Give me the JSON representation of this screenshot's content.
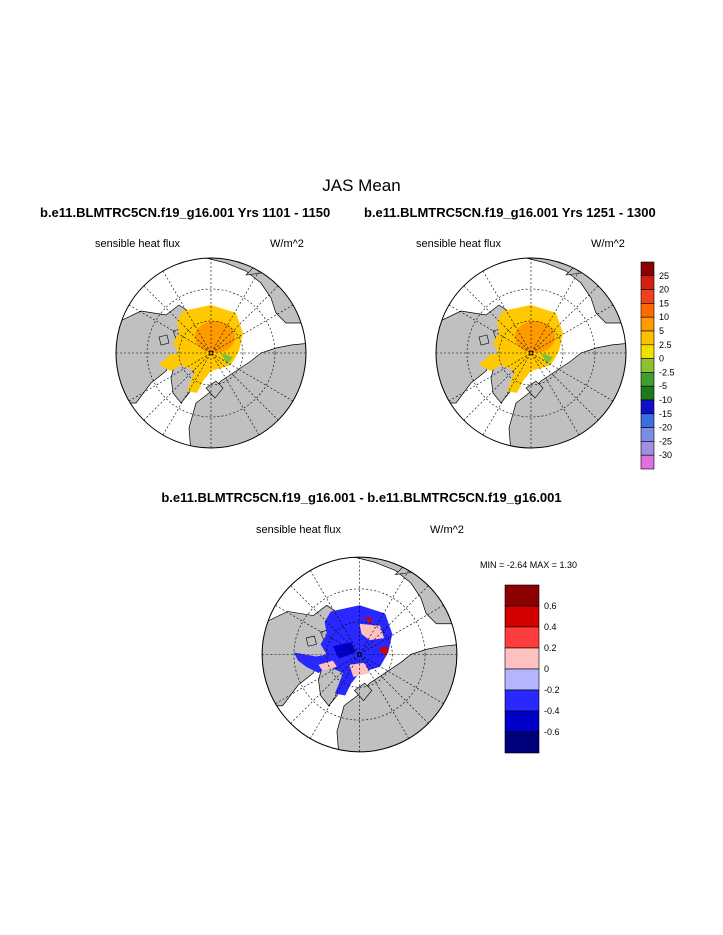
{
  "title": "JAS Mean",
  "panels": [
    {
      "case": "b.e11.BLMTRC5CN.f19_g16.001  Yrs 1101 - 1150",
      "variable": "sensible heat flux",
      "units": "W/m^2"
    },
    {
      "case": "b.e11.BLMTRC5CN.f19_g16.001  Yrs 1251 - 1300",
      "variable": "sensible heat flux",
      "units": "W/m^2"
    }
  ],
  "diff_panel": {
    "case": "b.e11.BLMTRC5CN.f19_g16.001 - b.e11.BLMTRC5CN.f19_g16.001",
    "variable": "sensible heat flux",
    "units": "W/m^2",
    "minmax": "MIN =  -2.64 MAX =   1.30"
  },
  "colorbar_top": {
    "labels": [
      "25",
      "20",
      "15",
      "10",
      "5",
      "2.5",
      "0",
      "-2.5",
      "-5",
      "-10",
      "-15",
      "-20",
      "-25",
      "-30"
    ],
    "colors": [
      "#8b0000",
      "#d21f10",
      "#f0401e",
      "#ff6a00",
      "#ff9a00",
      "#ffbf00",
      "#f0e000",
      "#90c030",
      "#3f9f2f",
      "#1d7a1d",
      "#1010c8",
      "#3b6ee0",
      "#7b8ce8",
      "#a090e0",
      "#e070e0"
    ]
  },
  "colorbar_diff": {
    "labels": [
      "0.6",
      "0.4",
      "0.2",
      "0",
      "-0.2",
      "-0.4",
      "-0.6"
    ],
    "colors": [
      "#8b0000",
      "#d40000",
      "#ff3c3c",
      "#ffc0c0",
      "#b4b4ff",
      "#2828ff",
      "#0000c8",
      "#00007a"
    ]
  },
  "map_colors": {
    "land": "#c0c0c0",
    "ocean": "#ffffff",
    "ice_warm": "#ffc800",
    "ice_core": "#ff9a00",
    "ice_green": "#80c040",
    "diff_blue": "#2828ff",
    "diff_pink": "#ffc0c0",
    "diff_red": "#d40000",
    "diff_dark": "#0000c8"
  }
}
